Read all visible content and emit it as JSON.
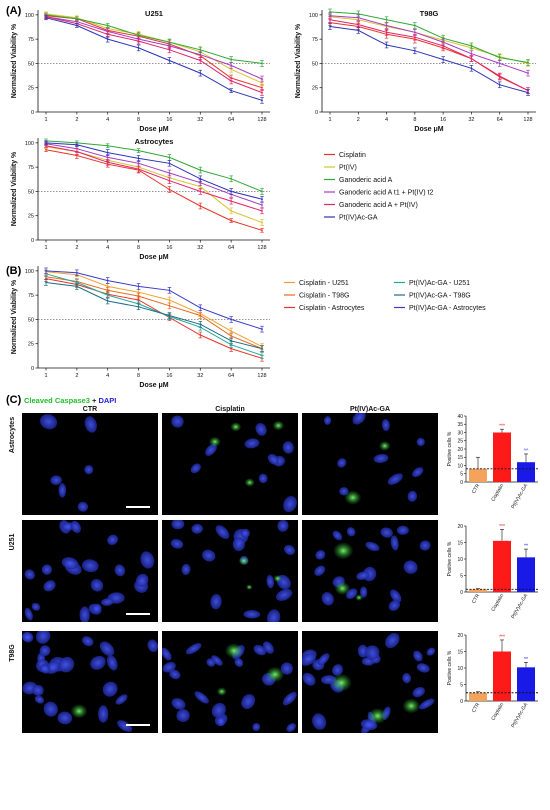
{
  "panel_labels": {
    "a": "(A)",
    "b": "(B)",
    "c": "(C)"
  },
  "stain_legend": {
    "green": "Cleaved Caspase3",
    "plus": " + ",
    "blue": "DAPI",
    "green_color": "#1fbf2a",
    "blue_color": "#2424d6"
  },
  "micro_columns": [
    "CTR",
    "Cisplatin",
    "Pt(IV)Ac-GA"
  ],
  "micro_rows": [
    "Astrocytes",
    "U251",
    "T98G"
  ],
  "chart_data": [
    {
      "type": "line",
      "title": "U251",
      "xlabel": "Dose μM",
      "ylabel": "Normalized Viability %",
      "categories": [
        "1",
        "2",
        "4",
        "8",
        "16",
        "32",
        "64",
        "128"
      ],
      "ylim": [
        0,
        105
      ],
      "yticks": [
        0,
        25,
        50,
        75,
        100
      ],
      "reference_line": 50,
      "series": [
        {
          "name": "Cisplatin",
          "color": "#e8342a",
          "values": [
            99,
            96,
            84,
            78,
            70,
            58,
            35,
            25
          ],
          "errors": [
            2,
            2,
            3,
            3,
            4,
            4,
            3,
            3
          ]
        },
        {
          "name": "Pt(IV)",
          "color": "#d9c330",
          "values": [
            101,
            97,
            86,
            80,
            72,
            62,
            44,
            30
          ],
          "errors": [
            2,
            2,
            3,
            3,
            3,
            4,
            3,
            3
          ]
        },
        {
          "name": "Ganoderic acid A",
          "color": "#2fa836",
          "values": [
            100,
            96,
            89,
            79,
            72,
            64,
            54,
            50
          ],
          "errors": [
            2,
            2,
            2,
            3,
            3,
            3,
            3,
            3
          ]
        },
        {
          "name": "Ganoderic acid A t1 + Pt(IV) t2",
          "color": "#a33cc4",
          "values": [
            98,
            93,
            83,
            75,
            68,
            59,
            48,
            34
          ],
          "errors": [
            2,
            2,
            3,
            3,
            3,
            3,
            3,
            3
          ]
        },
        {
          "name": "Ganoderic acid A + Pt(IV)",
          "color": "#e0256b",
          "values": [
            98,
            91,
            80,
            73,
            64,
            53,
            32,
            20
          ],
          "errors": [
            2,
            2,
            3,
            3,
            3,
            3,
            3,
            3
          ]
        },
        {
          "name": "Pt(IV)Ac-GA",
          "color": "#2c34b8",
          "values": [
            97,
            89,
            75,
            66,
            53,
            40,
            22,
            12
          ],
          "errors": [
            2,
            2,
            3,
            3,
            3,
            3,
            2,
            3
          ]
        }
      ]
    },
    {
      "type": "line",
      "title": "T98G",
      "xlabel": "Dose μM",
      "ylabel": "Normalized Viability %",
      "categories": [
        "1",
        "2",
        "4",
        "8",
        "16",
        "32",
        "64",
        "128"
      ],
      "ylim": [
        0,
        105
      ],
      "yticks": [
        0,
        25,
        50,
        75,
        100
      ],
      "reference_line": 50,
      "series": [
        {
          "name": "Cisplatin",
          "color": "#e8342a",
          "values": [
            92,
            88,
            80,
            75,
            66,
            55,
            36,
            22
          ],
          "errors": [
            3,
            3,
            4,
            4,
            3,
            3,
            3,
            3
          ]
        },
        {
          "name": "Pt(IV)",
          "color": "#d9c330",
          "values": [
            98,
            95,
            88,
            82,
            74,
            66,
            57,
            50
          ],
          "errors": [
            3,
            3,
            3,
            3,
            3,
            3,
            3,
            3
          ]
        },
        {
          "name": "Ganoderic acid A",
          "color": "#2fa836",
          "values": [
            103,
            101,
            95,
            89,
            76,
            68,
            56,
            51
          ],
          "errors": [
            3,
            3,
            3,
            3,
            3,
            3,
            3,
            3
          ]
        },
        {
          "name": "Ganoderic acid A t1 + Pt(IV) t2",
          "color": "#a33cc4",
          "values": [
            99,
            97,
            89,
            82,
            72,
            60,
            50,
            40
          ],
          "errors": [
            3,
            3,
            3,
            3,
            3,
            3,
            3,
            3
          ]
        },
        {
          "name": "Ganoderic acid A + Pt(IV)",
          "color": "#e0256b",
          "values": [
            95,
            90,
            82,
            77,
            68,
            55,
            37,
            22
          ],
          "errors": [
            3,
            3,
            3,
            3,
            3,
            3,
            3,
            3
          ]
        },
        {
          "name": "Pt(IV)Ac-GA",
          "color": "#2c34b8",
          "values": [
            88,
            84,
            69,
            63,
            54,
            45,
            28,
            20
          ],
          "errors": [
            3,
            3,
            3,
            3,
            3,
            3,
            3,
            3
          ]
        }
      ]
    },
    {
      "type": "line",
      "title": "Astrocytes",
      "xlabel": "Dose μM",
      "ylabel": "Normalized Viability %",
      "categories": [
        "1",
        "2",
        "4",
        "8",
        "16",
        "32",
        "64",
        "128"
      ],
      "ylim": [
        0,
        105
      ],
      "yticks": [
        0,
        25,
        50,
        75,
        100
      ],
      "reference_line": 50,
      "series": [
        {
          "name": "Cisplatin",
          "color": "#e8342a",
          "values": [
            93,
            87,
            78,
            72,
            52,
            35,
            20,
            10
          ],
          "errors": [
            2,
            3,
            3,
            3,
            3,
            3,
            2,
            2
          ]
        },
        {
          "name": "Pt(IV)",
          "color": "#d9c330",
          "values": [
            96,
            91,
            82,
            75,
            64,
            55,
            30,
            18
          ],
          "errors": [
            2,
            3,
            3,
            3,
            3,
            3,
            3,
            3
          ]
        },
        {
          "name": "Ganoderic acid A",
          "color": "#2fa836",
          "values": [
            102,
            100,
            97,
            92,
            85,
            72,
            63,
            50
          ],
          "errors": [
            2,
            2,
            2,
            2,
            3,
            3,
            3,
            3
          ]
        },
        {
          "name": "Ganoderic acid A t1 + Pt(IV) t2",
          "color": "#a33cc4",
          "values": [
            99,
            94,
            85,
            79,
            69,
            59,
            47,
            36
          ],
          "errors": [
            2,
            3,
            3,
            3,
            3,
            3,
            3,
            3
          ]
        },
        {
          "name": "Ganoderic acid A + Pt(IV)",
          "color": "#e0256b",
          "values": [
            97,
            91,
            80,
            73,
            61,
            50,
            40,
            30
          ],
          "errors": [
            2,
            3,
            3,
            3,
            3,
            3,
            3,
            3
          ]
        },
        {
          "name": "Pt(IV)Ac-GA",
          "color": "#2c34b8",
          "values": [
            100,
            98,
            90,
            84,
            79,
            63,
            50,
            42
          ],
          "errors": [
            2,
            2,
            3,
            3,
            3,
            3,
            3,
            3
          ]
        }
      ]
    },
    {
      "type": "line",
      "title": "",
      "xlabel": "Dose μM",
      "ylabel": "Normalized Viability %",
      "categories": [
        "1",
        "2",
        "4",
        "8",
        "16",
        "32",
        "64",
        "128"
      ],
      "ylim": [
        0,
        105
      ],
      "yticks": [
        0,
        25,
        50,
        75,
        100
      ],
      "reference_line": 50,
      "series": [
        {
          "name": "Cisplatin - U251",
          "color": "#f0a030",
          "values": [
            99,
            96,
            84,
            78,
            70,
            56,
            38,
            22
          ],
          "errors": [
            2,
            2,
            3,
            3,
            3,
            3,
            3,
            3
          ]
        },
        {
          "name": "Cisplatin - T98G",
          "color": "#e86a1e",
          "values": [
            94,
            89,
            80,
            74,
            64,
            54,
            33,
            20
          ],
          "errors": [
            3,
            3,
            3,
            3,
            3,
            3,
            3,
            3
          ]
        },
        {
          "name": "Cisplatin - Astrocytes",
          "color": "#e8342a",
          "values": [
            92,
            86,
            76,
            70,
            52,
            34,
            20,
            10
          ],
          "errors": [
            3,
            3,
            3,
            3,
            3,
            3,
            3,
            3
          ]
        },
        {
          "name": "Pt(IV)Ac-GA - U251",
          "color": "#22a89a",
          "values": [
            97,
            88,
            75,
            66,
            53,
            42,
            24,
            13
          ],
          "errors": [
            3,
            3,
            3,
            3,
            3,
            3,
            3,
            3
          ]
        },
        {
          "name": "Pt(IV)Ac-GA - T98G",
          "color": "#1b6e85",
          "values": [
            88,
            84,
            69,
            63,
            54,
            45,
            28,
            20
          ],
          "errors": [
            3,
            3,
            3,
            3,
            3,
            3,
            3,
            3
          ]
        },
        {
          "name": "Pt(IV)Ac-GA - Astrocytes",
          "color": "#3a3ac8",
          "values": [
            100,
            98,
            90,
            84,
            80,
            62,
            50,
            40
          ],
          "errors": [
            3,
            3,
            3,
            3,
            3,
            3,
            3,
            3
          ]
        }
      ]
    },
    {
      "type": "bar",
      "title": "",
      "ylabel": "Positive cells %",
      "categories": [
        "CTR",
        "Cisplatin",
        "Pt(IV)Ac-GA"
      ],
      "values": [
        8,
        30,
        12
      ],
      "errors": [
        7,
        2,
        5
      ],
      "colors": [
        "#f4a35c",
        "#ff1a1a",
        "#1a1ae6"
      ],
      "significance": [
        "",
        "***",
        "^^"
      ],
      "ylim": [
        0,
        40
      ],
      "yticks": [
        0,
        5,
        10,
        15,
        20,
        25,
        30,
        35,
        40
      ],
      "baseline": 8
    },
    {
      "type": "bar",
      "title": "",
      "ylabel": "Positive cells %",
      "categories": [
        "CTR",
        "Cisplatin",
        "Pt(IV)Ac-GA"
      ],
      "values": [
        0.8,
        15.5,
        10.5
      ],
      "errors": [
        0.2,
        3.5,
        2.5
      ],
      "colors": [
        "#f4a35c",
        "#ff1a1a",
        "#1a1ae6"
      ],
      "significance": [
        "",
        "***",
        "**"
      ],
      "ylim": [
        0,
        20
      ],
      "yticks": [
        0,
        5,
        10,
        15,
        20
      ],
      "baseline": 0.8
    },
    {
      "type": "bar",
      "title": "",
      "ylabel": "Positive cells %",
      "categories": [
        "CTR",
        "Cisplatin",
        "Pt(IV)Ac-GA"
      ],
      "values": [
        2.5,
        15,
        10.2
      ],
      "errors": [
        0.3,
        3.5,
        1.5
      ],
      "colors": [
        "#f4a35c",
        "#ff1a1a",
        "#1a1ae6"
      ],
      "significance": [
        "",
        "***",
        "**"
      ],
      "ylim": [
        0,
        20
      ],
      "yticks": [
        0,
        5,
        10,
        15,
        20
      ],
      "baseline": 2.5
    }
  ]
}
